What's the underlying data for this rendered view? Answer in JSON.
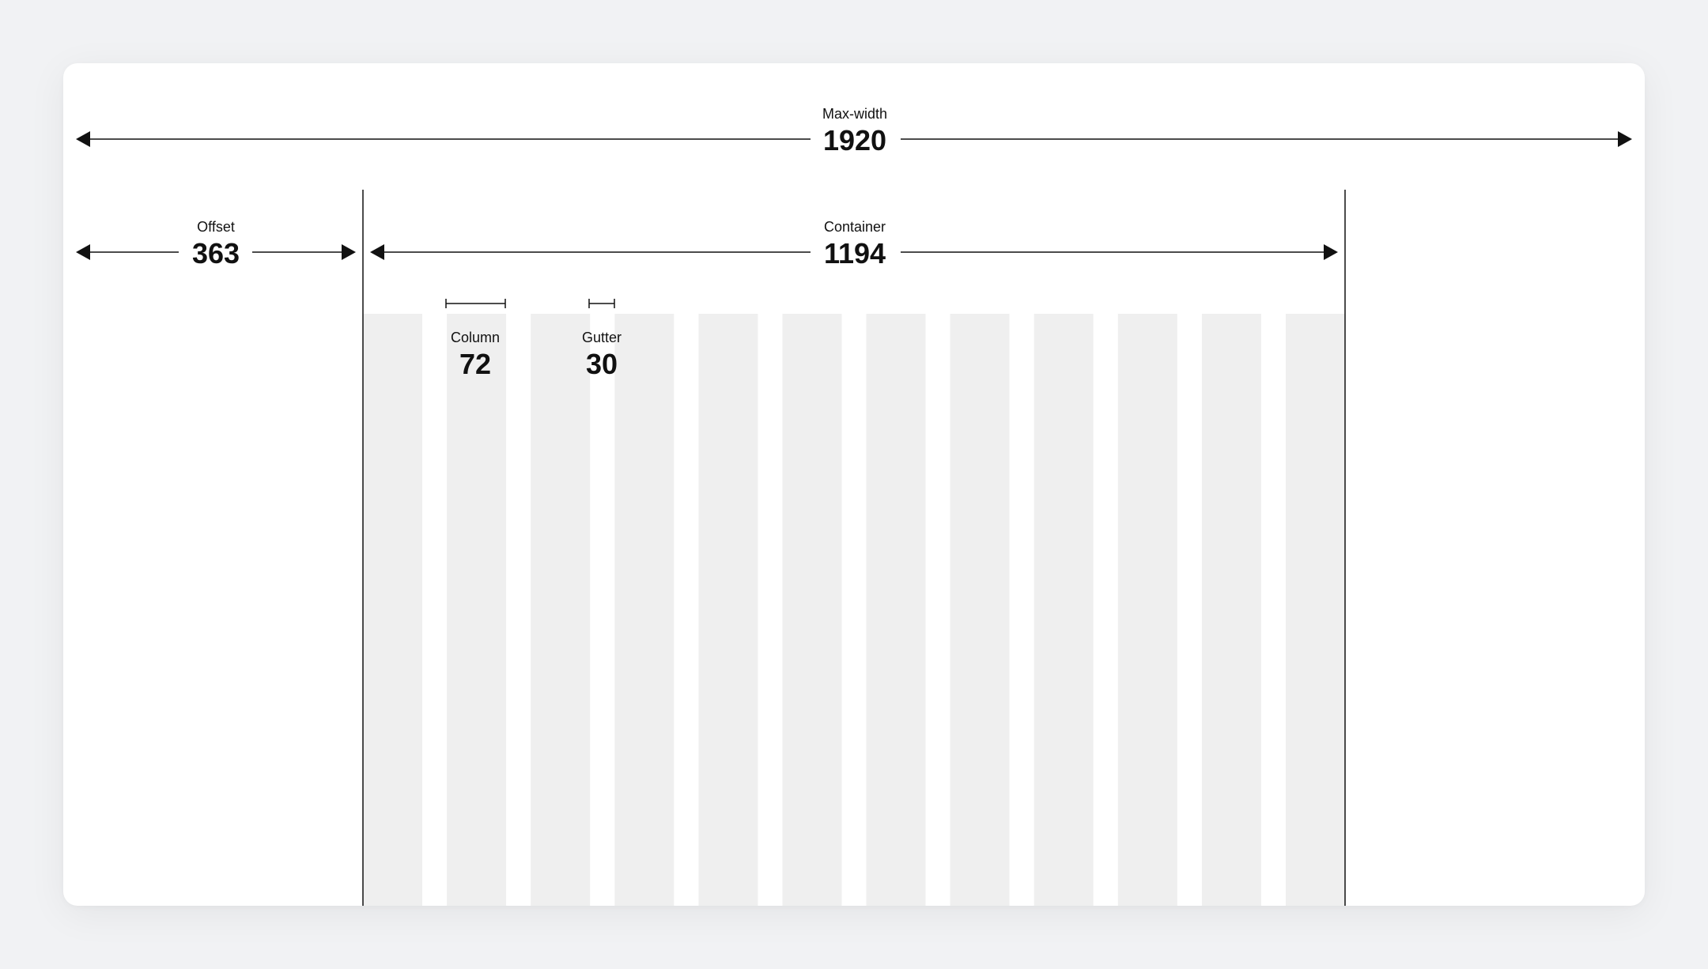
{
  "colors": {
    "background": "#f1f2f4",
    "card": "#ffffff",
    "column": "#efefef",
    "line": "#111111"
  },
  "max_width": {
    "label": "Max-width",
    "value": "1920"
  },
  "offset": {
    "label": "Offset",
    "value": "363"
  },
  "container": {
    "label": "Container",
    "value": "1194"
  },
  "column": {
    "label": "Column",
    "value": "72"
  },
  "gutter": {
    "label": "Gutter",
    "value": "30"
  },
  "grid": {
    "column_count": 12
  }
}
